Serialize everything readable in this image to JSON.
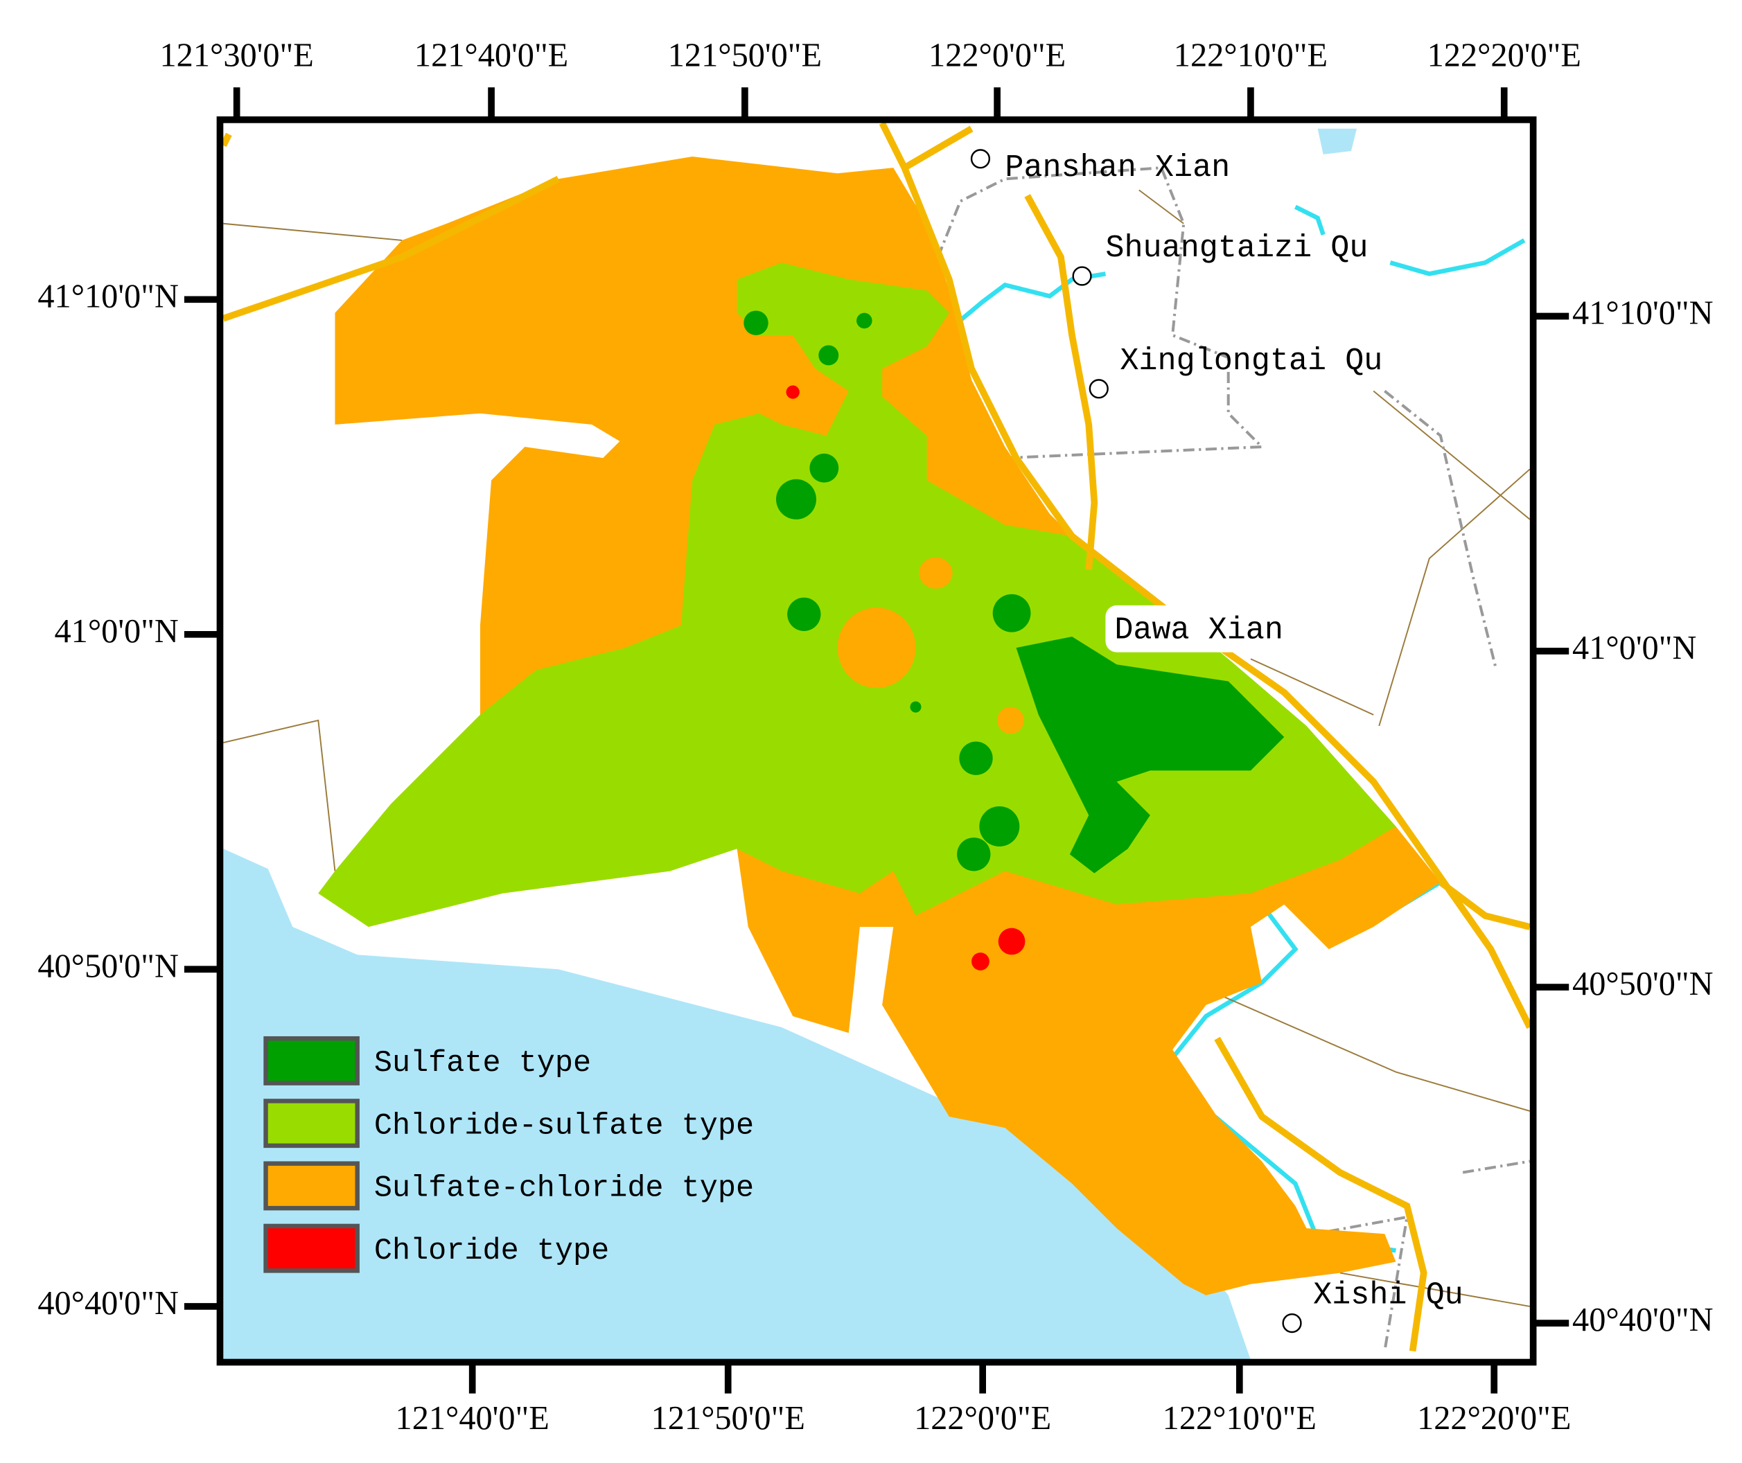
{
  "map": {
    "top_axis": [
      "121°30'0\"E",
      "121°40'0\"E",
      "121°50'0\"E",
      "122°0'0\"E",
      "122°10'0\"E",
      "122°20'0\"E"
    ],
    "bottom_axis": [
      "121°40'0\"E",
      "121°50'0\"E",
      "122°0'0\"E",
      "122°10'0\"E",
      "122°20'0\"E"
    ],
    "left_axis": [
      "41°10'0\"N",
      "41°0'0\"N",
      "40°50'0\"N",
      "40°40'0\"N"
    ],
    "right_axis": [
      "41°10'0\"N",
      "41°0'0\"N",
      "40°50'0\"N",
      "40°40'0\"N"
    ],
    "places": [
      "Panshan Xian",
      "Shuangtaizi Qu",
      "Xinglongtai Qu",
      "Dawa Xian",
      "Xishi Qu"
    ],
    "legend": [
      {
        "label": "Sulfate type",
        "color": "#00a000"
      },
      {
        "label": "Chloride-sulfate type",
        "color": "#99dd00"
      },
      {
        "label": "Sulfate-chloride type",
        "color": "#ffaa00"
      },
      {
        "label": "Chloride type",
        "color": "#ff0000"
      }
    ],
    "sea_color": "#aee6f8"
  }
}
